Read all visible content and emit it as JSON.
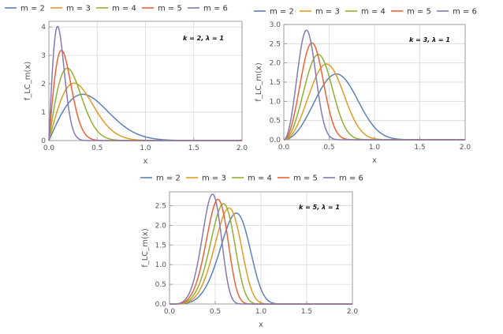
{
  "colors": {
    "m2": "#5e81b5",
    "m3": "#e19c24",
    "m4": "#8fb032",
    "m5": "#eb6235",
    "m6": "#8778b3"
  },
  "chart_data": [
    {
      "type": "line",
      "annotation": "k = 2, λ = 1",
      "xlabel": "x",
      "ylabel": "f_LC_m(x)",
      "xlim": [
        0,
        2.0
      ],
      "ylim": [
        0,
        4.2
      ],
      "x_ticks": [
        "0.0",
        "0.5",
        "1.0",
        "1.5",
        "2.0"
      ],
      "y_ticks": [
        "0",
        "1",
        "2",
        "3",
        "4"
      ],
      "x_tick_values": [
        0,
        0.5,
        1.0,
        1.5,
        2.0
      ],
      "y_tick_values": [
        0,
        1,
        2,
        3,
        4
      ],
      "series": [
        {
          "name": "m = 2",
          "color": "#5e81b5",
          "peak_x": 0.35,
          "peak_y": 1.63
        },
        {
          "name": "m = 3",
          "color": "#e19c24",
          "peak_x": 0.26,
          "peak_y": 2.02
        },
        {
          "name": "m = 4",
          "color": "#8fb032",
          "peak_x": 0.19,
          "peak_y": 2.55
        },
        {
          "name": "m = 5",
          "color": "#eb6235",
          "peak_x": 0.13,
          "peak_y": 3.18
        },
        {
          "name": "m = 6",
          "color": "#8778b3",
          "peak_x": 0.09,
          "peak_y": 4.02
        }
      ]
    },
    {
      "type": "line",
      "annotation": "k = 3, λ = 1",
      "xlabel": "x",
      "ylabel": "f_LC_m(x)",
      "xlim": [
        0,
        2.0
      ],
      "ylim": [
        0,
        3.0
      ],
      "x_ticks": [
        "0.0",
        "0.5",
        "1.0",
        "1.5",
        "2.0"
      ],
      "y_ticks": [
        "0.0",
        "0.5",
        "1.0",
        "1.5",
        "2.0",
        "2.5",
        "3.0"
      ],
      "x_tick_values": [
        0,
        0.5,
        1.0,
        1.5,
        2.0
      ],
      "y_tick_values": [
        0,
        0.5,
        1.0,
        1.5,
        2.0,
        2.5,
        3.0
      ],
      "series": [
        {
          "name": "m = 2",
          "color": "#5e81b5",
          "peak_x": 0.58,
          "peak_y": 1.71
        },
        {
          "name": "m = 3",
          "color": "#e19c24",
          "peak_x": 0.47,
          "peak_y": 1.97
        },
        {
          "name": "m = 4",
          "color": "#8fb032",
          "peak_x": 0.38,
          "peak_y": 2.22
        },
        {
          "name": "m = 5",
          "color": "#eb6235",
          "peak_x": 0.31,
          "peak_y": 2.52
        },
        {
          "name": "m = 6",
          "color": "#8778b3",
          "peak_x": 0.25,
          "peak_y": 2.85
        }
      ]
    },
    {
      "type": "line",
      "annotation": "k = 5, λ = 1",
      "xlabel": "x",
      "ylabel": "f_LC_m(x)",
      "xlim": [
        0,
        2.0
      ],
      "ylim": [
        0,
        2.85
      ],
      "x_ticks": [
        "0.0",
        "0.5",
        "1.0",
        "1.5",
        "2.0"
      ],
      "y_ticks": [
        "0.0",
        "0.5",
        "1.0",
        "1.5",
        "2.0",
        "2.5"
      ],
      "x_tick_values": [
        0,
        0.5,
        1.0,
        1.5,
        2.0
      ],
      "y_tick_values": [
        0,
        0.5,
        1.0,
        1.5,
        2.0,
        2.5
      ],
      "series": [
        {
          "name": "m = 2",
          "color": "#5e81b5",
          "peak_x": 0.73,
          "peak_y": 2.31
        },
        {
          "name": "m = 3",
          "color": "#e19c24",
          "peak_x": 0.65,
          "peak_y": 2.44
        },
        {
          "name": "m = 4",
          "color": "#8fb032",
          "peak_x": 0.59,
          "peak_y": 2.55
        },
        {
          "name": "m = 5",
          "color": "#eb6235",
          "peak_x": 0.53,
          "peak_y": 2.66
        },
        {
          "name": "m = 6",
          "color": "#8778b3",
          "peak_x": 0.47,
          "peak_y": 2.79
        }
      ]
    }
  ]
}
